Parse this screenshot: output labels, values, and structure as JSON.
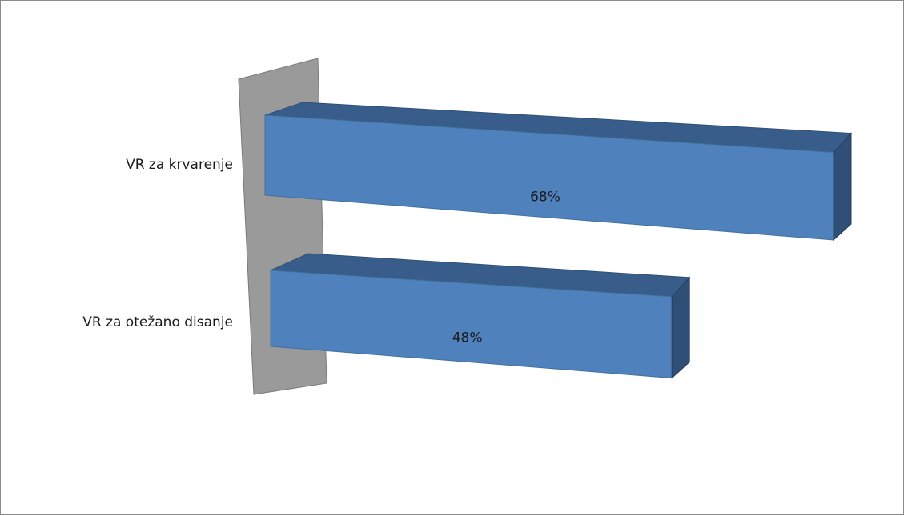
{
  "chart_data": {
    "type": "bar",
    "orientation": "horizontal",
    "style": "3d",
    "categories": [
      "VR za krvarenje",
      "VR za otežano disanje"
    ],
    "values": [
      68,
      48
    ],
    "data_labels": [
      "68%",
      "48%"
    ],
    "xlim": [
      0,
      100
    ],
    "grid": false,
    "legend": "none",
    "colors": {
      "bar_front": "#4f81bd",
      "bar_top": "#385d8a",
      "bar_side": "#2f4f77",
      "wall": "#9a9a9a"
    }
  }
}
